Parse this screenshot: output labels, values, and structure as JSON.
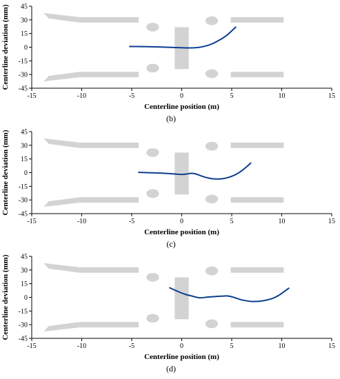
{
  "chart_data": [
    {
      "type": "line",
      "panel_label": "(b)",
      "xlabel": "Centerline position (m)",
      "ylabel": "Centerline deviation (mm)",
      "xlim": [
        -15,
        15
      ],
      "ylim": [
        -45,
        45
      ],
      "xticks": [
        -15,
        -10,
        -5,
        0,
        5,
        10,
        15
      ],
      "yticks": [
        -45,
        -30,
        -15,
        0,
        15,
        30,
        45
      ],
      "series": [
        {
          "color": "#0a3d91",
          "x": [
            -5.2,
            -4,
            -3,
            -2,
            -1,
            0,
            0.8,
            1.5,
            2.2,
            3,
            3.8,
            4.5,
            5,
            5.4
          ],
          "y": [
            0.8,
            0.7,
            0.5,
            0.2,
            -0.2,
            -0.6,
            -0.8,
            -0.5,
            0.8,
            3.5,
            8,
            13,
            18,
            22
          ]
        }
      ]
    },
    {
      "type": "line",
      "panel_label": "(c)",
      "xlabel": "Centerline position (m)",
      "ylabel": "Centerline deviation (mm)",
      "xlim": [
        -15,
        15
      ],
      "ylim": [
        -45,
        45
      ],
      "xticks": [
        -15,
        -10,
        -5,
        0,
        5,
        10,
        15
      ],
      "yticks": [
        -45,
        -30,
        -15,
        0,
        15,
        30,
        45
      ],
      "series": [
        {
          "color": "#0a3d91",
          "x": [
            -4.3,
            -3,
            -2,
            -1,
            0,
            0.5,
            1,
            1.5,
            2,
            2.5,
            3,
            3.5,
            4,
            4.5,
            5,
            5.5,
            6,
            6.5,
            6.9
          ],
          "y": [
            0.3,
            -0.2,
            -0.6,
            -1.2,
            -2,
            -1.5,
            -0.8,
            -1.8,
            -3.8,
            -5.5,
            -6.6,
            -7,
            -6.8,
            -5.8,
            -4,
            -1.5,
            2,
            6.5,
            10.5
          ]
        }
      ]
    },
    {
      "type": "line",
      "panel_label": "(d)",
      "xlabel": "Centerline position (m)",
      "ylabel": "Centerline deviation (mm)",
      "xlim": [
        -15,
        15
      ],
      "ylim": [
        -45,
        45
      ],
      "xticks": [
        -15,
        -10,
        -5,
        0,
        5,
        10,
        15
      ],
      "yticks": [
        -45,
        -30,
        -15,
        0,
        15,
        30,
        45
      ],
      "series": [
        {
          "color": "#0a3d91",
          "x": [
            -1.2,
            -0.5,
            0.3,
            1,
            1.8,
            2.5,
            3.2,
            4,
            4.6,
            5.2,
            6,
            7,
            8,
            9,
            9.7,
            10.2,
            10.7
          ],
          "y": [
            10.5,
            7,
            3.5,
            1.5,
            -0.5,
            0.2,
            0.8,
            1.3,
            1.5,
            0,
            -2.8,
            -4.5,
            -4,
            -1.5,
            2.2,
            6,
            10
          ]
        }
      ]
    }
  ]
}
